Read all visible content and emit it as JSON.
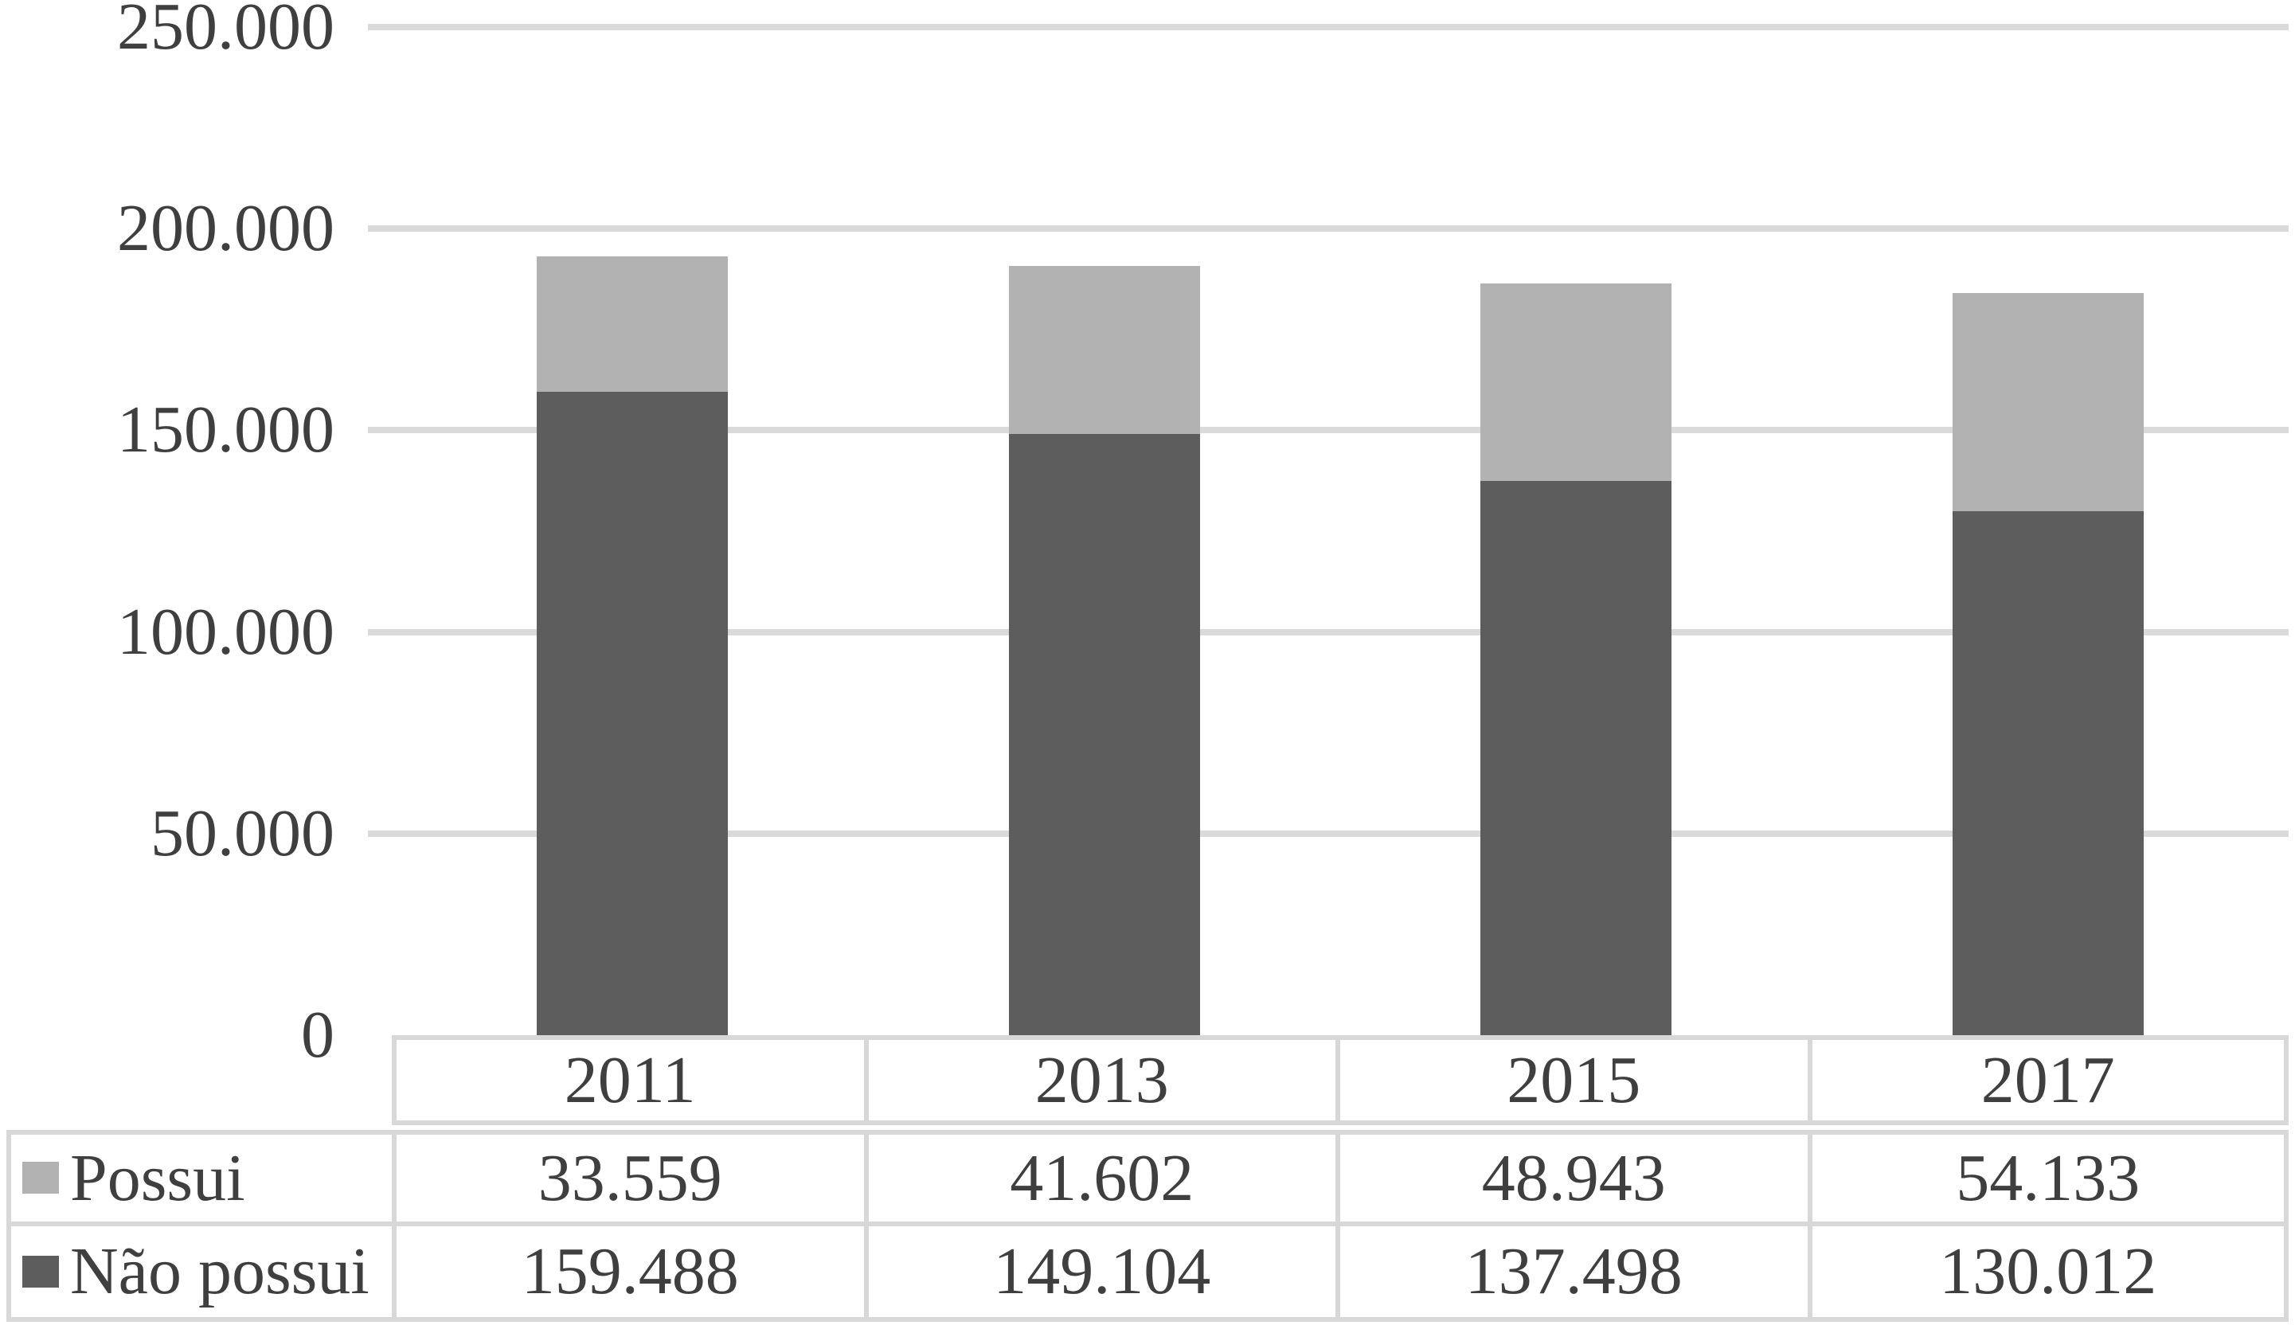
{
  "colors": {
    "background": "#ffffff",
    "gridline": "#dadada",
    "table_border": "#d8d8d8",
    "text": "#3f3f3f",
    "series_possui": "#b2b2b2",
    "series_nao_possui": "#5d5d5d"
  },
  "chart_data": {
    "type": "bar",
    "stacked": true,
    "title": "",
    "xlabel": "",
    "ylabel": "",
    "grid": true,
    "ylim": [
      0,
      250000
    ],
    "ytick_interval": 50000,
    "yticks": [
      {
        "value": 0,
        "label": "0"
      },
      {
        "value": 50000,
        "label": "50.000"
      },
      {
        "value": 100000,
        "label": "100.000"
      },
      {
        "value": 150000,
        "label": "150.000"
      },
      {
        "value": 200000,
        "label": "200.000"
      },
      {
        "value": 250000,
        "label": "250.000"
      }
    ],
    "categories": [
      "2011",
      "2013",
      "2015",
      "2017"
    ],
    "series": [
      {
        "name": "Possui",
        "color": "#b2b2b2",
        "values": [
          33559,
          41602,
          48943,
          54133
        ],
        "labels": [
          "33.559",
          "41.602",
          "48.943",
          "54.133"
        ]
      },
      {
        "name": "Não possui",
        "color": "#5d5d5d",
        "values": [
          159488,
          149104,
          137498,
          130012
        ],
        "labels": [
          "159.488",
          "149.104",
          "137.498",
          "130.012"
        ]
      }
    ],
    "stack_bottom_to_top": [
      "Não possui",
      "Possui"
    ],
    "legend_position": "data-table-left"
  }
}
